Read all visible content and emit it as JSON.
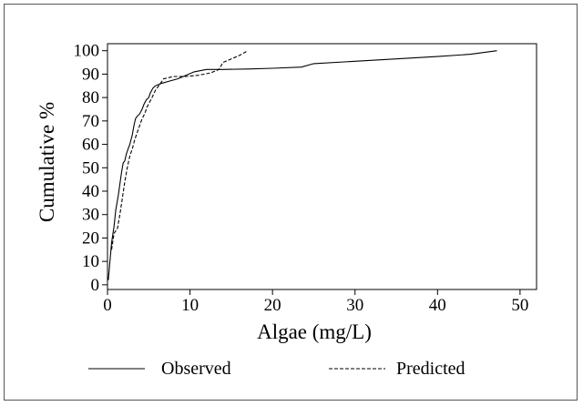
{
  "chart_data": {
    "type": "line",
    "title": "",
    "xlabel": "Algae (mg/L)",
    "ylabel": "Cumulative %",
    "xlim": [
      0,
      52
    ],
    "ylim": [
      -2,
      103
    ],
    "x_ticks": [
      0,
      10,
      20,
      30,
      40,
      50
    ],
    "y_ticks": [
      0,
      10,
      20,
      30,
      40,
      50,
      60,
      70,
      80,
      90,
      100
    ],
    "grid": false,
    "legend_position": "bottom",
    "series": [
      {
        "name": "Observed",
        "style": "solid",
        "color": "#000000",
        "points": [
          [
            0.1,
            2
          ],
          [
            0.3,
            10
          ],
          [
            0.5,
            18
          ],
          [
            0.8,
            25
          ],
          [
            1.0,
            32
          ],
          [
            1.3,
            38
          ],
          [
            1.5,
            43
          ],
          [
            1.7,
            48
          ],
          [
            1.9,
            52
          ],
          [
            2.1,
            53
          ],
          [
            2.3,
            56
          ],
          [
            2.5,
            58
          ],
          [
            2.7,
            60
          ],
          [
            3.0,
            64
          ],
          [
            3.2,
            68
          ],
          [
            3.4,
            71
          ],
          [
            3.6,
            72
          ],
          [
            3.9,
            73
          ],
          [
            4.2,
            75
          ],
          [
            4.4,
            77
          ],
          [
            4.7,
            79
          ],
          [
            5.0,
            80
          ],
          [
            5.2,
            82
          ],
          [
            5.5,
            84
          ],
          [
            5.8,
            85
          ],
          [
            6.5,
            86
          ],
          [
            7.5,
            87
          ],
          [
            8.5,
            88
          ],
          [
            9.2,
            89
          ],
          [
            10.5,
            91
          ],
          [
            12,
            92
          ],
          [
            14,
            92
          ],
          [
            17,
            92.2
          ],
          [
            20,
            92.5
          ],
          [
            23.5,
            93
          ],
          [
            25,
            94.5
          ],
          [
            30,
            95.5
          ],
          [
            35,
            96.5
          ],
          [
            40,
            97.5
          ],
          [
            44,
            98.5
          ],
          [
            47.2,
            100
          ]
        ]
      },
      {
        "name": "Predicted",
        "style": "dashed",
        "color": "#000000",
        "points": [
          [
            0.5,
            15
          ],
          [
            0.8,
            22
          ],
          [
            1.2,
            24
          ],
          [
            1.5,
            30
          ],
          [
            1.8,
            37
          ],
          [
            2.1,
            44
          ],
          [
            2.4,
            50
          ],
          [
            2.7,
            55
          ],
          [
            3.0,
            58
          ],
          [
            3.3,
            62
          ],
          [
            3.6,
            65
          ],
          [
            3.9,
            68
          ],
          [
            4.2,
            71
          ],
          [
            4.5,
            73
          ],
          [
            4.8,
            76
          ],
          [
            5.1,
            78
          ],
          [
            5.4,
            80
          ],
          [
            5.8,
            83
          ],
          [
            6.2,
            85
          ],
          [
            6.8,
            88
          ],
          [
            8,
            89
          ],
          [
            9.5,
            89
          ],
          [
            11,
            89.5
          ],
          [
            12.5,
            90.5
          ],
          [
            13.5,
            92
          ],
          [
            14,
            95
          ],
          [
            15,
            96.5
          ],
          [
            16,
            98
          ],
          [
            17,
            100
          ]
        ]
      }
    ]
  }
}
